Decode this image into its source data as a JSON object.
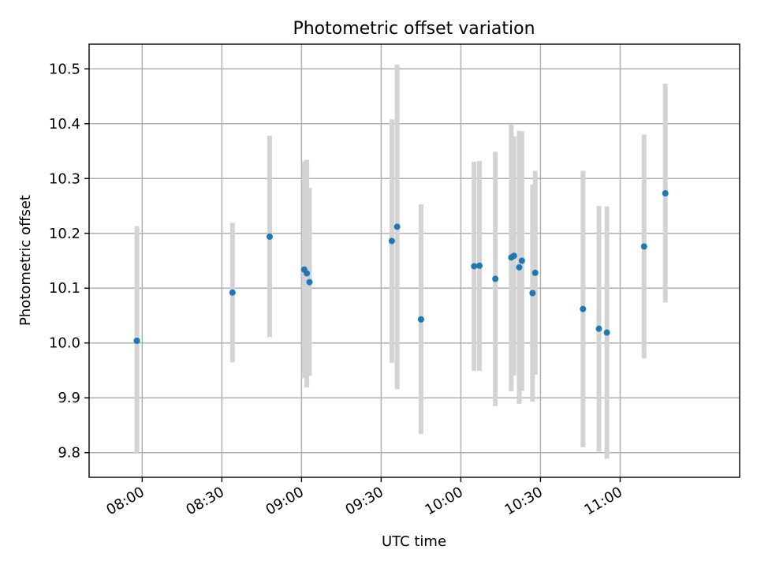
{
  "chart_data": {
    "type": "scatter",
    "title": "Photometric offset variation",
    "xlabel": "UTC time",
    "ylabel": "Photometric offset",
    "xlim": [
      "07:40",
      "11:45"
    ],
    "ylim": [
      9.755,
      10.545
    ],
    "x_ticks": [
      "08:00",
      "08:30",
      "09:00",
      "09:30",
      "10:00",
      "10:30",
      "11:00"
    ],
    "y_ticks": [
      "9.8",
      "9.9",
      "10.0",
      "10.1",
      "10.2",
      "10.3",
      "10.4",
      "10.5"
    ],
    "grid": true,
    "point_color": "#1f77b4",
    "errorbar_color": "#d3d3d3",
    "points": [
      {
        "time": "07:58",
        "value": 10.004,
        "low": 9.798,
        "high": 10.213
      },
      {
        "time": "07:58",
        "value": 10.004,
        "low": 9.811,
        "high": 10.197
      },
      {
        "time": "08:34",
        "value": 10.092,
        "low": 9.965,
        "high": 10.219
      },
      {
        "time": "08:48",
        "value": 10.194,
        "low": 10.011,
        "high": 10.378
      },
      {
        "time": "09:01",
        "value": 10.134,
        "low": 9.936,
        "high": 10.331
      },
      {
        "time": "09:02",
        "value": 10.127,
        "low": 9.919,
        "high": 10.334
      },
      {
        "time": "09:03",
        "value": 10.111,
        "low": 9.94,
        "high": 10.283
      },
      {
        "time": "09:34",
        "value": 10.186,
        "low": 9.964,
        "high": 10.408
      },
      {
        "time": "09:36",
        "value": 10.212,
        "low": 9.916,
        "high": 10.508
      },
      {
        "time": "09:45",
        "value": 10.043,
        "low": 9.834,
        "high": 10.253
      },
      {
        "time": "10:05",
        "value": 10.14,
        "low": 9.949,
        "high": 10.331
      },
      {
        "time": "10:07",
        "value": 10.141,
        "low": 9.949,
        "high": 10.332
      },
      {
        "time": "10:13",
        "value": 10.117,
        "low": 9.885,
        "high": 10.349
      },
      {
        "time": "10:19",
        "value": 10.156,
        "low": 9.912,
        "high": 10.4
      },
      {
        "time": "10:20",
        "value": 10.159,
        "low": 9.941,
        "high": 10.377
      },
      {
        "time": "10:22",
        "value": 10.138,
        "low": 9.889,
        "high": 10.387
      },
      {
        "time": "10:23",
        "value": 10.15,
        "low": 9.913,
        "high": 10.386
      },
      {
        "time": "10:27",
        "value": 10.091,
        "low": 9.893,
        "high": 10.289
      },
      {
        "time": "10:28",
        "value": 10.128,
        "low": 9.942,
        "high": 10.314
      },
      {
        "time": "10:46",
        "value": 10.062,
        "low": 9.81,
        "high": 10.314
      },
      {
        "time": "10:52",
        "value": 10.026,
        "low": 9.802,
        "high": 10.25
      },
      {
        "time": "10:55",
        "value": 10.019,
        "low": 9.789,
        "high": 10.249
      },
      {
        "time": "11:09",
        "value": 10.176,
        "low": 9.972,
        "high": 10.38
      },
      {
        "time": "11:17",
        "value": 10.273,
        "low": 10.074,
        "high": 10.473
      }
    ]
  }
}
